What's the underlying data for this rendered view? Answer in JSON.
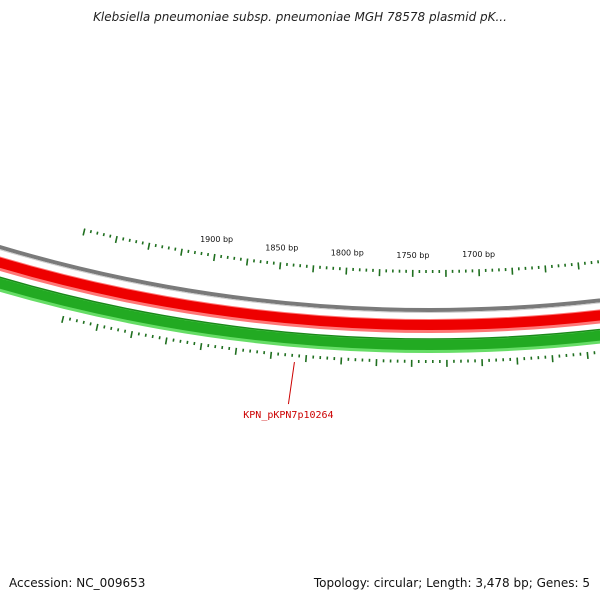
{
  "title": "Klebsiella pneumoniae subsp. pneumoniae MGH 78578 plasmid pK...",
  "footer": {
    "accession_label": "Accession:",
    "accession": "NC_009653",
    "summary": "Topology: circular; Length: 3,478 bp; Genes: 5"
  },
  "map": {
    "tick_labels": [
      {
        "bp": 1900,
        "label": "1900 bp"
      },
      {
        "bp": 1850,
        "label": "1850 bp"
      },
      {
        "bp": 1800,
        "label": "1800 bp"
      },
      {
        "bp": 1750,
        "label": "1750 bp"
      },
      {
        "bp": 1700,
        "label": "1700 bp"
      }
    ],
    "gene_label": "KPN_pKPN7p10264",
    "colors": {
      "backbone": "#7a7a7a",
      "red_track": "#ee0000",
      "red_track_light": "#ff7777",
      "green_track": "#22aa22",
      "green_track_light": "#66dd66",
      "tick": "#1f6f1f",
      "gene_label": "#cc0000"
    }
  }
}
